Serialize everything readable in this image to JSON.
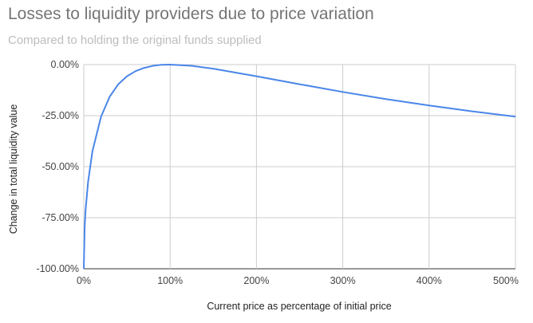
{
  "chart_data": {
    "type": "line",
    "title": "Losses to liquidity providers due to price variation",
    "subtitle": "Compared to holding the original funds supplied",
    "xlabel": "Current price as percentage of initial price",
    "ylabel": "Change in total liquidity value",
    "xlim": [
      0,
      500
    ],
    "ylim": [
      -100,
      0
    ],
    "x_ticks": [
      "0%",
      "100%",
      "200%",
      "300%",
      "400%",
      "500%"
    ],
    "y_ticks": [
      "0.00%",
      "-25.00%",
      "-50.00%",
      "-75.00%",
      "-100.00%"
    ],
    "grid": true,
    "color": "#4a86e8",
    "series": [
      {
        "x": [
          0,
          1,
          2,
          5,
          10,
          20,
          30,
          40,
          50,
          60,
          70,
          80,
          90,
          100,
          125,
          150,
          200,
          250,
          300,
          350,
          400,
          450,
          500
        ],
        "y": [
          -100,
          -80,
          -71.7,
          -57.4,
          -42.5,
          -25.5,
          -15.7,
          -9.6,
          -5.7,
          -3.2,
          -1.6,
          -0.6,
          -0.1,
          0,
          -0.6,
          -2.0,
          -5.7,
          -9.6,
          -13.4,
          -16.9,
          -20.0,
          -22.9,
          -25.5
        ]
      }
    ]
  }
}
